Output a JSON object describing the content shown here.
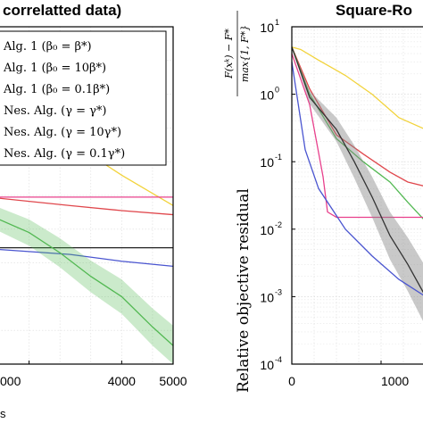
{
  "chart_data": [
    {
      "type": "line",
      "title": "correlatted data)",
      "xlabel": "",
      "ylabel": "",
      "x_ticks": [
        "000",
        "4000",
        "5000"
      ],
      "xlim": [
        1600,
        5000
      ],
      "ylim": [
        0,
        1
      ],
      "grid": true,
      "legend_position": "top",
      "legend": [
        "Alg. 1 (β₀ = β*)",
        "Alg. 1 (β₀ = 10β*)",
        "Alg. 1 (β₀ = 0.1β*)",
        "Nes. Alg. (γ = γ*)",
        "Nes. Alg. (γ = 10γ*)",
        "Nes. Alg. (γ = 0.1γ*)"
      ],
      "series": [
        {
          "color": "#f2d33c",
          "x": [
            1600,
            3000,
            4000,
            5000
          ],
          "values": [
            0.75,
            0.66,
            0.56,
            0.47
          ]
        },
        {
          "color": "#e8408c",
          "x": [
            1600,
            5000
          ],
          "values": [
            0.495,
            0.495
          ]
        },
        {
          "color": "#e0474c",
          "x": [
            1600,
            3000,
            4000,
            5000
          ],
          "values": [
            0.492,
            0.47,
            0.455,
            0.443
          ]
        },
        {
          "color": "#222222",
          "x": [
            1600,
            5000
          ],
          "values": [
            0.345,
            0.345
          ]
        },
        {
          "color": "#4a55d0",
          "x": [
            1600,
            3000,
            4000,
            5000
          ],
          "values": [
            0.34,
            0.325,
            0.305,
            0.29
          ]
        },
        {
          "color": "#52b852",
          "band": true,
          "x": [
            1600,
            2200,
            2800,
            3400,
            4000,
            4600,
            5000
          ],
          "values": [
            0.43,
            0.39,
            0.33,
            0.26,
            0.2,
            0.11,
            0.055
          ]
        }
      ],
      "minor_label": "s"
    },
    {
      "type": "line",
      "title": "Square-Ro",
      "ylabel": "Relative objective residual",
      "ylabel_fraction": {
        "numerator": "F(xᵏ) − F*",
        "denominator": "max{1, F*}"
      },
      "y_scale": "log",
      "ylim": [
        0.0001,
        10
      ],
      "y_ticks": [
        "10",
        "10",
        "10",
        "10",
        "10",
        "10"
      ],
      "y_tick_exponents": [
        "1",
        "0",
        "-1",
        "-2",
        "-3",
        "-4"
      ],
      "x_ticks": [
        "0",
        "1000"
      ],
      "xlim": [
        0,
        1500
      ],
      "grid": true,
      "series": [
        {
          "color": "#f2d33c",
          "x": [
            0,
            100,
            300,
            600,
            900,
            1200,
            1500
          ],
          "values": [
            5,
            4.6,
            3.2,
            1.9,
            1.0,
            0.45,
            0.3
          ]
        },
        {
          "color": "#e0474c",
          "x": [
            0,
            200,
            500,
            800,
            1100,
            1300,
            1500
          ],
          "values": [
            5,
            1.2,
            0.25,
            0.13,
            0.07,
            0.05,
            0.043
          ]
        },
        {
          "color": "#52b852",
          "x": [
            0,
            200,
            500,
            800,
            1100,
            1300,
            1500
          ],
          "values": [
            5,
            1.0,
            0.22,
            0.1,
            0.05,
            0.025,
            0.013
          ]
        },
        {
          "color": "#e8408c",
          "x": [
            0,
            200,
            350,
            400,
            500,
            1500
          ],
          "values": [
            4,
            0.7,
            0.06,
            0.018,
            0.015,
            0.015
          ]
        },
        {
          "color": "#333333",
          "band": true,
          "x": [
            0,
            200,
            500,
            700,
            900,
            1100,
            1300,
            1500
          ],
          "values": [
            5,
            0.9,
            0.3,
            0.1,
            0.03,
            0.008,
            0.003,
            0.001
          ]
        },
        {
          "color": "#4a55d0",
          "x": [
            0,
            150,
            300,
            600,
            900,
            1200,
            1500
          ],
          "values": [
            3,
            0.15,
            0.04,
            0.01,
            0.004,
            0.0018,
            0.001
          ]
        }
      ]
    }
  ]
}
